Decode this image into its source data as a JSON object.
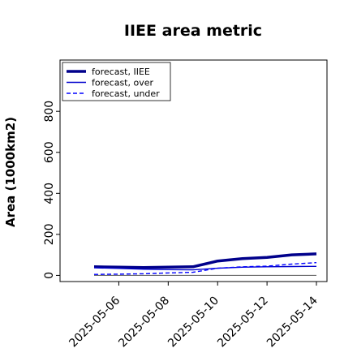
{
  "chart_data": {
    "type": "line",
    "title": "IIEE area metric",
    "xlabel": "",
    "ylabel": "Area (1000km2)",
    "x": [
      "2025-05-05",
      "2025-05-06",
      "2025-05-07",
      "2025-05-08",
      "2025-05-09",
      "2025-05-10",
      "2025-05-11",
      "2025-05-12",
      "2025-05-13",
      "2025-05-14"
    ],
    "x_tick_labels": [
      "2025-05-06",
      "2025-05-08",
      "2025-05-10",
      "2025-05-12",
      "2025-05-14"
    ],
    "highlight_tick": "2025-05-06",
    "highlight_color": "#228b22",
    "ylim": [
      -30,
      1050
    ],
    "y_ticks": [
      0,
      200,
      400,
      600,
      800
    ],
    "reference_line": 0,
    "series": [
      {
        "name": "forecast, IIEE",
        "values": [
          42,
          40,
          38,
          40,
          42,
          70,
          82,
          88,
          100,
          105
        ],
        "color": "#00008b",
        "style": "solid-thick"
      },
      {
        "name": "forecast, over",
        "values": [
          37,
          34,
          30,
          28,
          27,
          35,
          40,
          42,
          43,
          44
        ],
        "color": "#0000cd",
        "style": "solid"
      },
      {
        "name": "forecast, under",
        "values": [
          5,
          6,
          8,
          12,
          15,
          35,
          42,
          45,
          55,
          62
        ],
        "color": "#0000ff",
        "style": "dashed"
      }
    ],
    "legend_position": "top-left",
    "grid": false
  }
}
